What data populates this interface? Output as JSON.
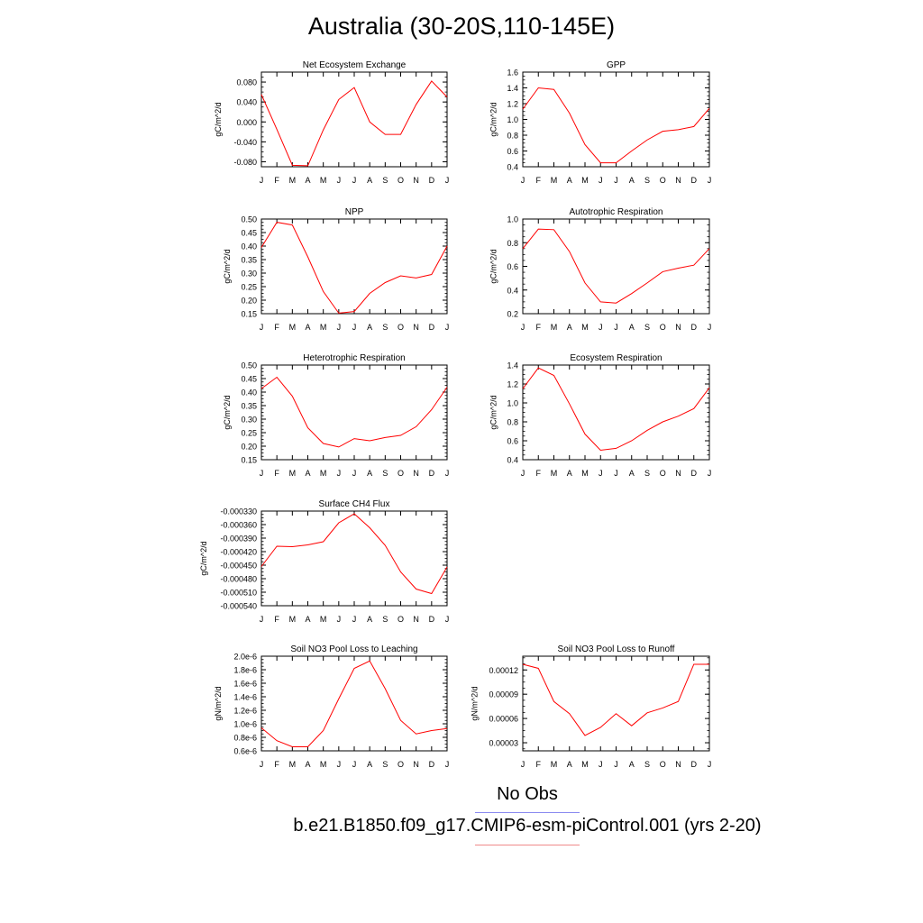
{
  "title": "Australia (30-20S,110-145E)",
  "legend": {
    "no_obs_label": "No Obs",
    "no_obs_color": "#8a8af0",
    "case_label": "b.e21.B1850.f09_g17.CMIP6-esm-piControl.001 (yrs 2-20)",
    "case_color": "#f08a8a"
  },
  "chart_data": [
    {
      "type": "line",
      "title": "Net Ecosystem Exchange",
      "ylabel": "gC/m^2/d",
      "x": [
        "J",
        "F",
        "M",
        "A",
        "M",
        "J",
        "J",
        "A",
        "S",
        "O",
        "N",
        "D",
        "J"
      ],
      "ylim": [
        -0.09,
        0.1
      ],
      "yticks": [
        -0.08,
        -0.04,
        0.0,
        0.04,
        0.08
      ],
      "ytick_labels": [
        "-0.080",
        "-0.040",
        "0.000",
        "0.040",
        "0.080"
      ],
      "values": [
        0.055,
        -0.015,
        -0.087,
        -0.088,
        -0.016,
        0.045,
        0.069,
        0.0,
        -0.025,
        -0.025,
        0.035,
        0.082,
        0.05
      ],
      "color": "#ff0000"
    },
    {
      "type": "line",
      "title": "GPP",
      "ylabel": "gC/m^2/d",
      "x": [
        "J",
        "F",
        "M",
        "A",
        "M",
        "J",
        "J",
        "A",
        "S",
        "O",
        "N",
        "D",
        "J"
      ],
      "ylim": [
        0.4,
        1.6
      ],
      "yticks": [
        0.4,
        0.6,
        0.8,
        1.0,
        1.2,
        1.4,
        1.6
      ],
      "ytick_labels": [
        "0.4",
        "0.6",
        "0.8",
        "1.0",
        "1.2",
        "1.4",
        "1.6"
      ],
      "values": [
        1.13,
        1.4,
        1.38,
        1.08,
        0.68,
        0.45,
        0.45,
        0.6,
        0.74,
        0.85,
        0.87,
        0.91,
        1.14
      ],
      "color": "#ff0000"
    },
    {
      "type": "line",
      "title": "NPP",
      "ylabel": "gC/m^2/d",
      "x": [
        "J",
        "F",
        "M",
        "A",
        "M",
        "J",
        "J",
        "A",
        "S",
        "O",
        "N",
        "D",
        "J"
      ],
      "ylim": [
        0.15,
        0.5
      ],
      "yticks": [
        0.15,
        0.2,
        0.25,
        0.3,
        0.35,
        0.4,
        0.45,
        0.5
      ],
      "ytick_labels": [
        "0.15",
        "0.20",
        "0.25",
        "0.30",
        "0.35",
        "0.40",
        "0.45",
        "0.50"
      ],
      "values": [
        0.395,
        0.488,
        0.478,
        0.36,
        0.232,
        0.152,
        0.158,
        0.225,
        0.265,
        0.29,
        0.282,
        0.295,
        0.4
      ],
      "color": "#ff0000"
    },
    {
      "type": "line",
      "title": "Autotrophic Respiration",
      "ylabel": "gC/m^2/d",
      "x": [
        "J",
        "F",
        "M",
        "A",
        "M",
        "J",
        "J",
        "A",
        "S",
        "O",
        "N",
        "D",
        "J"
      ],
      "ylim": [
        0.2,
        1.0
      ],
      "yticks": [
        0.2,
        0.4,
        0.6,
        0.8,
        1.0
      ],
      "ytick_labels": [
        "0.2",
        "0.4",
        "0.6",
        "0.8",
        "1.0"
      ],
      "values": [
        0.75,
        0.915,
        0.91,
        0.725,
        0.46,
        0.3,
        0.29,
        0.37,
        0.46,
        0.555,
        0.585,
        0.61,
        0.75
      ],
      "color": "#ff0000"
    },
    {
      "type": "line",
      "title": "Heterotrophic Respiration",
      "ylabel": "gC/m^2/d",
      "x": [
        "J",
        "F",
        "M",
        "A",
        "M",
        "J",
        "J",
        "A",
        "S",
        "O",
        "N",
        "D",
        "J"
      ],
      "ylim": [
        0.15,
        0.5
      ],
      "yticks": [
        0.15,
        0.2,
        0.25,
        0.3,
        0.35,
        0.4,
        0.45,
        0.5
      ],
      "ytick_labels": [
        "0.15",
        "0.20",
        "0.25",
        "0.30",
        "0.35",
        "0.40",
        "0.45",
        "0.50"
      ],
      "values": [
        0.413,
        0.455,
        0.385,
        0.268,
        0.21,
        0.197,
        0.228,
        0.22,
        0.232,
        0.24,
        0.272,
        0.335,
        0.418
      ],
      "color": "#ff0000"
    },
    {
      "type": "line",
      "title": "Ecosystem Respiration",
      "ylabel": "gC/m^2/d",
      "x": [
        "J",
        "F",
        "M",
        "A",
        "M",
        "J",
        "J",
        "A",
        "S",
        "O",
        "N",
        "D",
        "J"
      ],
      "ylim": [
        0.4,
        1.4
      ],
      "yticks": [
        0.4,
        0.6,
        0.8,
        1.0,
        1.2,
        1.4
      ],
      "ytick_labels": [
        "0.4",
        "0.6",
        "0.8",
        "1.0",
        "1.2",
        "1.4"
      ],
      "values": [
        1.15,
        1.37,
        1.29,
        0.99,
        0.67,
        0.5,
        0.52,
        0.6,
        0.71,
        0.8,
        0.86,
        0.94,
        1.16
      ],
      "color": "#ff0000"
    },
    {
      "type": "line",
      "title": "Surface CH4 Flux",
      "ylabel": "gC/m^2/d",
      "x": [
        "J",
        "F",
        "M",
        "A",
        "M",
        "J",
        "J",
        "A",
        "S",
        "O",
        "N",
        "D",
        "J"
      ],
      "ylim": [
        -0.00054,
        -0.00033
      ],
      "yticks": [
        -0.00054,
        -0.00051,
        -0.00048,
        -0.00045,
        -0.00042,
        -0.00039,
        -0.00036,
        -0.00033
      ],
      "ytick_labels": [
        "-0.000540",
        "-0.000510",
        "-0.000480",
        "-0.000450",
        "-0.000420",
        "-0.000390",
        "-0.000360",
        "-0.000330"
      ],
      "values": [
        -0.000453,
        -0.000408,
        -0.000409,
        -0.000405,
        -0.000398,
        -0.000356,
        -0.000336,
        -0.000367,
        -0.000406,
        -0.000465,
        -0.000503,
        -0.000513,
        -0.000454
      ],
      "color": "#ff0000"
    },
    {
      "type": "line",
      "title": "Soil NO3 Pool Loss to Leaching",
      "ylabel": "gN/m^2/d",
      "x": [
        "J",
        "F",
        "M",
        "A",
        "M",
        "J",
        "J",
        "A",
        "S",
        "O",
        "N",
        "D",
        "J"
      ],
      "ylim": [
        6e-07,
        2e-06
      ],
      "yticks": [
        6e-07,
        8e-07,
        1e-06,
        1.2e-06,
        1.4e-06,
        1.6e-06,
        1.8e-06,
        2e-06
      ],
      "ytick_labels": [
        "0.6e-6",
        "0.8e-6",
        "1.0e-6",
        "1.2e-6",
        "1.4e-6",
        "1.6e-6",
        "1.8e-6",
        "2.0e-6"
      ],
      "values": [
        9.4e-07,
        7.5e-07,
        6.6e-07,
        6.6e-07,
        9e-07,
        1.37e-06,
        1.82e-06,
        1.93e-06,
        1.52e-06,
        1.05e-06,
        8.5e-07,
        9e-07,
        9.3e-07
      ],
      "color": "#ff0000"
    },
    {
      "type": "line",
      "title": "Soil NO3 Pool Loss to Runoff",
      "ylabel": "gN/m^2/d",
      "x": [
        "J",
        "F",
        "M",
        "A",
        "M",
        "J",
        "J",
        "A",
        "S",
        "O",
        "N",
        "D",
        "J"
      ],
      "ylim": [
        2e-05,
        0.000137
      ],
      "yticks": [
        3e-05,
        6e-05,
        9e-05,
        0.00012
      ],
      "ytick_labels": [
        "0.00003",
        "0.00006",
        "0.00009",
        "0.00012"
      ],
      "values": [
        0.000127,
        0.000122,
        8.1e-05,
        6.6e-05,
        3.9e-05,
        4.9e-05,
        6.6e-05,
        5.1e-05,
        6.7e-05,
        7.3e-05,
        8.1e-05,
        0.000127,
        0.000127
      ],
      "color": "#ff0000"
    }
  ]
}
